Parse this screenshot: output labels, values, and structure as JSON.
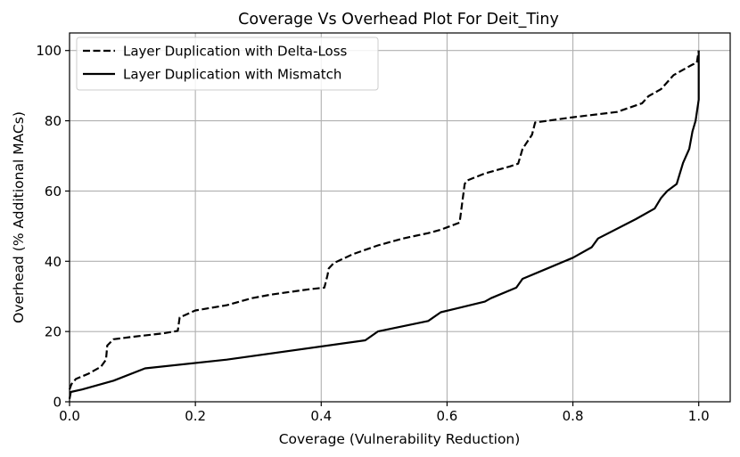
{
  "chart_data": {
    "type": "line",
    "title": "Coverage Vs Overhead Plot For Deit_Tiny",
    "xlabel": "Coverage (Vulnerability Reduction)",
    "ylabel": "Overhead (% Additional MACs)",
    "xlim": [
      0,
      1.05
    ],
    "ylim": [
      0,
      105
    ],
    "xticks": [
      0.0,
      0.2,
      0.4,
      0.6,
      0.8,
      1.0
    ],
    "xtick_labels": [
      "0.0",
      "0.2",
      "0.4",
      "0.6",
      "0.8",
      "1.0"
    ],
    "yticks": [
      0,
      20,
      40,
      60,
      80,
      100
    ],
    "ytick_labels": [
      "0",
      "20",
      "40",
      "60",
      "80",
      "100"
    ],
    "grid": true,
    "legend_position": "top-left",
    "series": [
      {
        "name": "Layer Duplication with Delta-Loss",
        "style": "dashed",
        "color": "#000000",
        "x": [
          0.0,
          0.003,
          0.01,
          0.03,
          0.05,
          0.058,
          0.06,
          0.07,
          0.1,
          0.15,
          0.172,
          0.175,
          0.2,
          0.25,
          0.29,
          0.32,
          0.38,
          0.405,
          0.41,
          0.412,
          0.42,
          0.45,
          0.49,
          0.53,
          0.57,
          0.59,
          0.62,
          0.628,
          0.632,
          0.66,
          0.7,
          0.713,
          0.72,
          0.735,
          0.74,
          0.8,
          0.87,
          0.91,
          0.92,
          0.94,
          0.96,
          0.98,
          0.99,
          0.997,
          1.0
        ],
        "y": [
          3.5,
          5,
          6.5,
          8,
          10,
          12,
          16,
          17.8,
          18.5,
          19.5,
          20.2,
          24,
          26,
          27.5,
          29.5,
          30.5,
          32,
          32.5,
          36,
          38,
          39.5,
          42,
          44.5,
          46.5,
          48,
          49,
          51,
          62,
          63,
          65,
          67,
          67.8,
          72,
          76,
          79.5,
          81,
          82.5,
          85,
          87,
          89,
          93,
          95,
          96,
          96.5,
          100
        ]
      },
      {
        "name": "Layer Duplication with Mismatch",
        "style": "solid",
        "color": "#000000",
        "x": [
          0.0,
          0.002,
          0.02,
          0.07,
          0.12,
          0.25,
          0.47,
          0.49,
          0.57,
          0.59,
          0.66,
          0.67,
          0.71,
          0.72,
          0.76,
          0.8,
          0.83,
          0.84,
          0.9,
          0.93,
          0.94,
          0.95,
          0.965,
          0.975,
          0.985,
          0.99,
          0.995,
          1.0,
          1.0
        ],
        "y": [
          0.8,
          2.8,
          3.5,
          6,
          9.5,
          12,
          17.5,
          20,
          23,
          25.5,
          28.5,
          29.5,
          32.5,
          35,
          38,
          41,
          44,
          46.5,
          52,
          55,
          58,
          60,
          62,
          68,
          72,
          77,
          80,
          86,
          100
        ]
      }
    ]
  }
}
